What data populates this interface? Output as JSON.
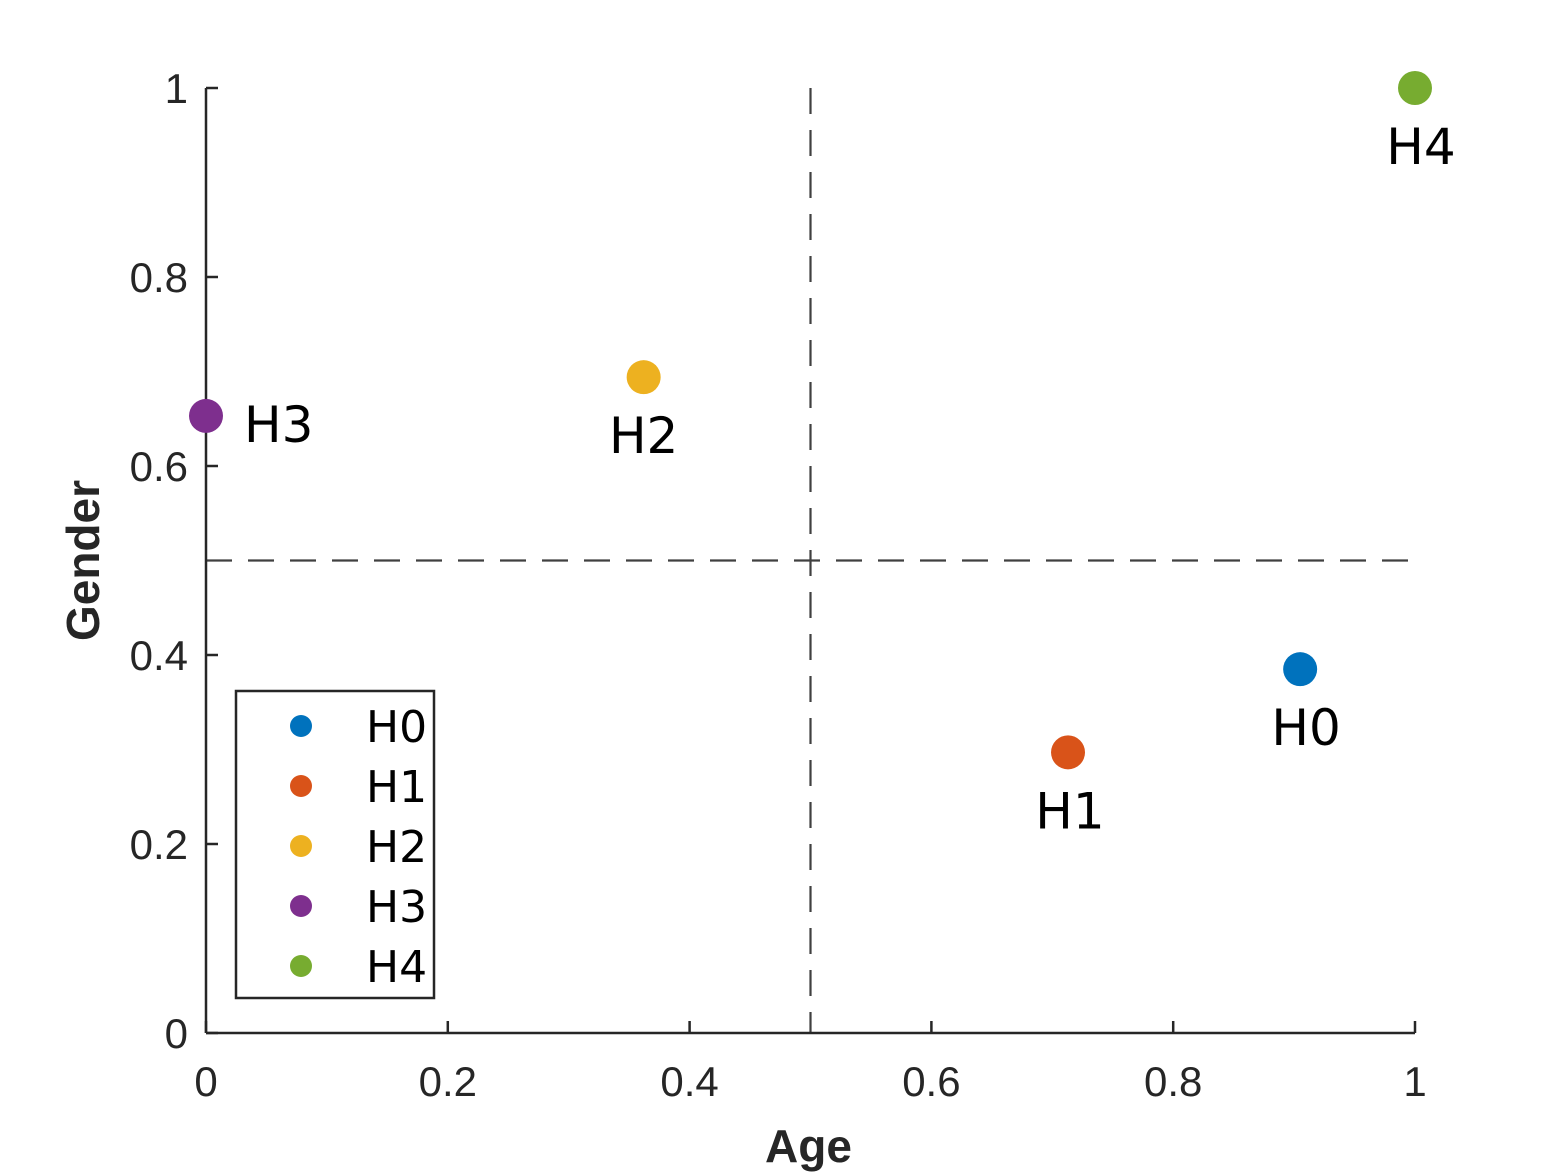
{
  "chart_data": {
    "type": "scatter",
    "title": "",
    "xlabel": "Age",
    "ylabel": "Gender",
    "xlim": [
      0,
      1
    ],
    "ylim": [
      0,
      1
    ],
    "xticks": [
      0,
      0.2,
      0.4,
      0.6,
      0.8,
      1
    ],
    "yticks": [
      0,
      0.2,
      0.4,
      0.6,
      0.8,
      1
    ],
    "xtick_labels": [
      "0",
      "0.2",
      "0.4",
      "0.6",
      "0.8",
      "1"
    ],
    "ytick_labels": [
      "0",
      "0.2",
      "0.4",
      "0.6",
      "0.8",
      "1"
    ],
    "reference_lines": {
      "x": 0.5,
      "y": 0.5,
      "style": "dashed"
    },
    "legend": {
      "location": "bottom-left",
      "entries": [
        "H0",
        "H1",
        "H2",
        "H3",
        "H4"
      ]
    },
    "series": [
      {
        "name": "H0",
        "x": 0.905,
        "y": 0.385,
        "color": "#0072BD",
        "label": "H0"
      },
      {
        "name": "H1",
        "x": 0.713,
        "y": 0.297,
        "color": "#D95319",
        "label": "H1"
      },
      {
        "name": "H2",
        "x": 0.362,
        "y": 0.694,
        "color": "#EDB120",
        "label": "H2"
      },
      {
        "name": "H3",
        "x": 0.0,
        "y": 0.653,
        "color": "#7E2F8E",
        "label": "H3"
      },
      {
        "name": "H4",
        "x": 1.0,
        "y": 1.0,
        "color": "#77AC30",
        "label": "H4"
      }
    ]
  }
}
